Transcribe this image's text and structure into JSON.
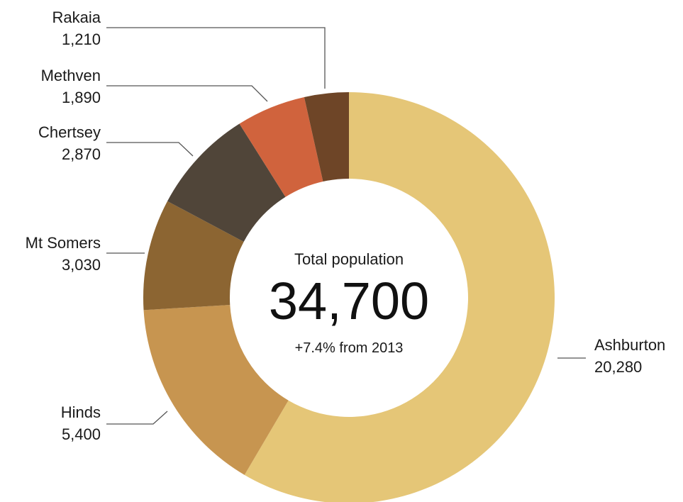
{
  "chart_data": {
    "type": "pie",
    "donut": true,
    "center": {
      "title": "Total population",
      "total": "34,700",
      "change": "+7.4% from 2013"
    },
    "slices": [
      {
        "label": "Ashburton",
        "value": 20280,
        "value_label": "20,280",
        "color": "#e5c677"
      },
      {
        "label": "Hinds",
        "value": 5400,
        "value_label": "5,400",
        "color": "#c79550"
      },
      {
        "label": "Mt Somers",
        "value": 3030,
        "value_label": "3,030",
        "color": "#8c6532"
      },
      {
        "label": "Chertsey",
        "value": 2870,
        "value_label": "2,870",
        "color": "#504539"
      },
      {
        "label": "Methven",
        "value": 1890,
        "value_label": "1,890",
        "color": "#d0633d"
      },
      {
        "label": "Rakaia",
        "value": 1210,
        "value_label": "1,210",
        "color": "#6e4527"
      }
    ],
    "start_angle_deg": 0,
    "direction": "clockwise"
  }
}
